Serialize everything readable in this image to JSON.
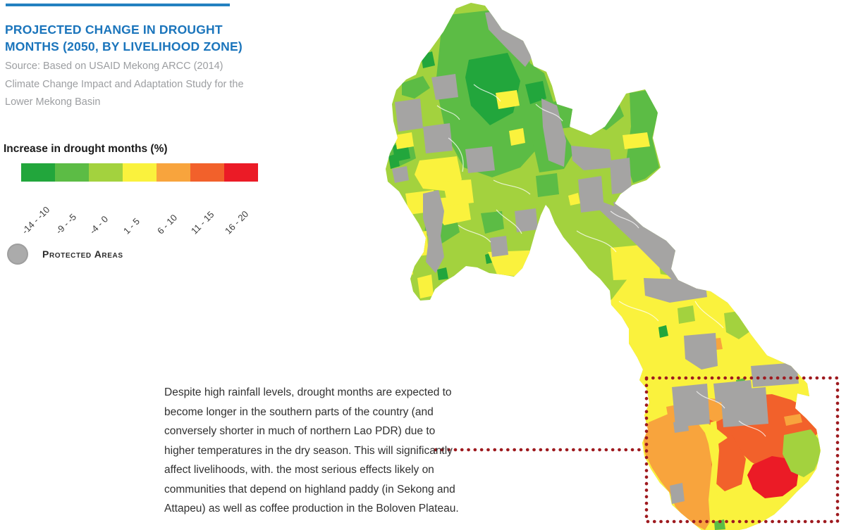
{
  "header": {
    "rule_color": "#2381C0",
    "title": "PROJECTED CHANGE IN DROUGHT MONTHS (2050, BY LIVELIHOOD ZONE)",
    "source": "Source: Based on USAID Mekong ARCC (2014) Climate Change Impact and Adaptation Study for the Lower Mekong Basin"
  },
  "legend": {
    "title": "Increase in drought months (%)",
    "classes": [
      {
        "label": "-14 - -10",
        "color": "#22A63C"
      },
      {
        "label": "-9 - -5",
        "color": "#5CBC45"
      },
      {
        "label": "-4 - 0",
        "color": "#A3D23E"
      },
      {
        "label": "1 - 5",
        "color": "#FAF23D"
      },
      {
        "label": "6 - 10",
        "color": "#F8A43D"
      },
      {
        "label": "11 - 15",
        "color": "#F2612B"
      },
      {
        "label": "16 - 20",
        "color": "#EB1B26"
      }
    ],
    "protected": {
      "label": "Protected Areas",
      "color": "#ABABAB"
    }
  },
  "annotation": {
    "text": "Despite high rainfall levels, drought months are expected to become longer in the southern parts of the country (and conversely shorter in much of northern Lao PDR) due to higher temperatures in the dry season. This will significantly affect livelihoods, with. the most serious effects likely on communities that depend on highland paddy (in Sekong and Attapeu) as well as coffee production in the Boloven Plateau."
  },
  "map": {
    "region": "Lao PDR drought change by livelihood zone (choropleth)",
    "callout_color": "#9E1A1F",
    "palette": {
      "g1": "#22A63C",
      "g2": "#5CBC45",
      "g3": "#A3D23E",
      "y": "#FAF23D",
      "o": "#F8A43D",
      "ro": "#F2612B",
      "r": "#EB1B26",
      "gray": "#A5A4A3"
    }
  },
  "text_colors": {
    "title_blue": "#1B75BC",
    "source_gray": "#9C9EA1",
    "body": "#303030"
  }
}
